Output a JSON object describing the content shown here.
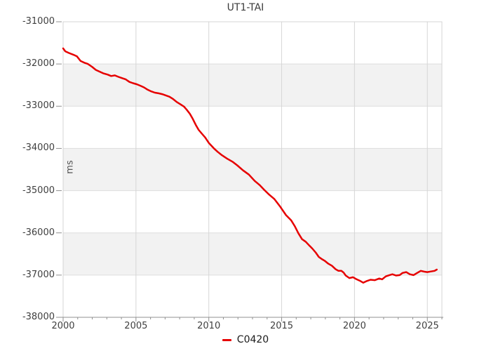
{
  "chart_data": {
    "type": "line",
    "title": "UT1-TAI",
    "ylabel": "ms",
    "xlim": [
      2000,
      2026
    ],
    "ylim": [
      -38000,
      -31000
    ],
    "grid": "major",
    "legend_position": "bottom-center",
    "x_major_ticks": [
      2000,
      2005,
      2010,
      2015,
      2020,
      2025
    ],
    "x_tick_labels": [
      "2000",
      "2005",
      "2010",
      "2015",
      "2020",
      "2025"
    ],
    "x_minor_tick_step": 1,
    "y_ticks": [
      -31000,
      -32000,
      -33000,
      -34000,
      -35000,
      -36000,
      -37000,
      -38000
    ],
    "y_tick_labels": [
      "-31000",
      "-32000",
      "-33000",
      "-34000",
      "-35000",
      "-36000",
      "-37000",
      "-38000"
    ],
    "shaded_bands": [
      [
        -32000,
        -33000
      ],
      [
        -34000,
        -35000
      ],
      [
        -36000,
        -37000
      ]
    ],
    "legend": [
      {
        "name": "C0420",
        "color": "#e60000"
      }
    ],
    "series": [
      {
        "name": "C0420",
        "color": "#e60000",
        "points": [
          [
            2000.0,
            -31630
          ],
          [
            2000.15,
            -31700
          ],
          [
            2000.4,
            -31740
          ],
          [
            2000.7,
            -31780
          ],
          [
            2000.95,
            -31820
          ],
          [
            2001.2,
            -31930
          ],
          [
            2001.45,
            -31970
          ],
          [
            2001.7,
            -32000
          ],
          [
            2002.0,
            -32070
          ],
          [
            2002.25,
            -32140
          ],
          [
            2002.5,
            -32180
          ],
          [
            2002.75,
            -32220
          ],
          [
            2003.05,
            -32250
          ],
          [
            2003.3,
            -32285
          ],
          [
            2003.55,
            -32270
          ],
          [
            2003.8,
            -32305
          ],
          [
            2004.05,
            -32335
          ],
          [
            2004.3,
            -32365
          ],
          [
            2004.55,
            -32425
          ],
          [
            2004.8,
            -32455
          ],
          [
            2005.05,
            -32480
          ],
          [
            2005.3,
            -32515
          ],
          [
            2005.55,
            -32555
          ],
          [
            2005.8,
            -32610
          ],
          [
            2006.05,
            -32650
          ],
          [
            2006.3,
            -32680
          ],
          [
            2006.55,
            -32695
          ],
          [
            2006.8,
            -32715
          ],
          [
            2007.05,
            -32745
          ],
          [
            2007.3,
            -32775
          ],
          [
            2007.55,
            -32830
          ],
          [
            2007.8,
            -32900
          ],
          [
            2008.05,
            -32955
          ],
          [
            2008.3,
            -33010
          ],
          [
            2008.5,
            -33090
          ],
          [
            2008.7,
            -33180
          ],
          [
            2008.9,
            -33300
          ],
          [
            2009.1,
            -33440
          ],
          [
            2009.3,
            -33560
          ],
          [
            2009.55,
            -33660
          ],
          [
            2009.75,
            -33740
          ],
          [
            2010.0,
            -33870
          ],
          [
            2010.35,
            -34000
          ],
          [
            2010.6,
            -34080
          ],
          [
            2010.9,
            -34160
          ],
          [
            2011.25,
            -34240
          ],
          [
            2011.65,
            -34320
          ],
          [
            2011.95,
            -34400
          ],
          [
            2012.35,
            -34520
          ],
          [
            2012.75,
            -34620
          ],
          [
            2013.15,
            -34770
          ],
          [
            2013.5,
            -34870
          ],
          [
            2013.8,
            -34980
          ],
          [
            2014.1,
            -35080
          ],
          [
            2014.5,
            -35200
          ],
          [
            2014.9,
            -35380
          ],
          [
            2015.3,
            -35580
          ],
          [
            2015.65,
            -35700
          ],
          [
            2015.9,
            -35840
          ],
          [
            2016.15,
            -36010
          ],
          [
            2016.4,
            -36150
          ],
          [
            2016.65,
            -36210
          ],
          [
            2016.9,
            -36300
          ],
          [
            2017.1,
            -36370
          ],
          [
            2017.35,
            -36470
          ],
          [
            2017.55,
            -36570
          ],
          [
            2017.75,
            -36620
          ],
          [
            2017.95,
            -36660
          ],
          [
            2018.2,
            -36730
          ],
          [
            2018.45,
            -36780
          ],
          [
            2018.7,
            -36860
          ],
          [
            2018.9,
            -36900
          ],
          [
            2019.1,
            -36900
          ],
          [
            2019.25,
            -36940
          ],
          [
            2019.4,
            -37010
          ],
          [
            2019.65,
            -37070
          ],
          [
            2019.9,
            -37050
          ],
          [
            2020.15,
            -37100
          ],
          [
            2020.4,
            -37140
          ],
          [
            2020.6,
            -37180
          ],
          [
            2020.85,
            -37140
          ],
          [
            2021.1,
            -37110
          ],
          [
            2021.4,
            -37120
          ],
          [
            2021.7,
            -37080
          ],
          [
            2021.9,
            -37100
          ],
          [
            2022.15,
            -37030
          ],
          [
            2022.4,
            -37000
          ],
          [
            2022.6,
            -36980
          ],
          [
            2022.85,
            -37010
          ],
          [
            2023.1,
            -37000
          ],
          [
            2023.3,
            -36950
          ],
          [
            2023.55,
            -36930
          ],
          [
            2023.8,
            -36980
          ],
          [
            2024.05,
            -37000
          ],
          [
            2024.3,
            -36950
          ],
          [
            2024.55,
            -36900
          ],
          [
            2024.8,
            -36920
          ],
          [
            2025.0,
            -36930
          ],
          [
            2025.25,
            -36915
          ],
          [
            2025.5,
            -36900
          ],
          [
            2025.65,
            -36870
          ]
        ]
      }
    ],
    "colors": {
      "background": "#ffffff",
      "band_fill": "#f2f2f2",
      "grid_vertical": "#d6d6d6",
      "grid_horizontal": "#dedede",
      "plot_border": "#d4d4d4",
      "axis": "#909090",
      "tick_text": "#3f3f3f",
      "title_text": "#3a3a3a",
      "legend_text": "#1a1a1a",
      "line": "#e60000"
    }
  }
}
